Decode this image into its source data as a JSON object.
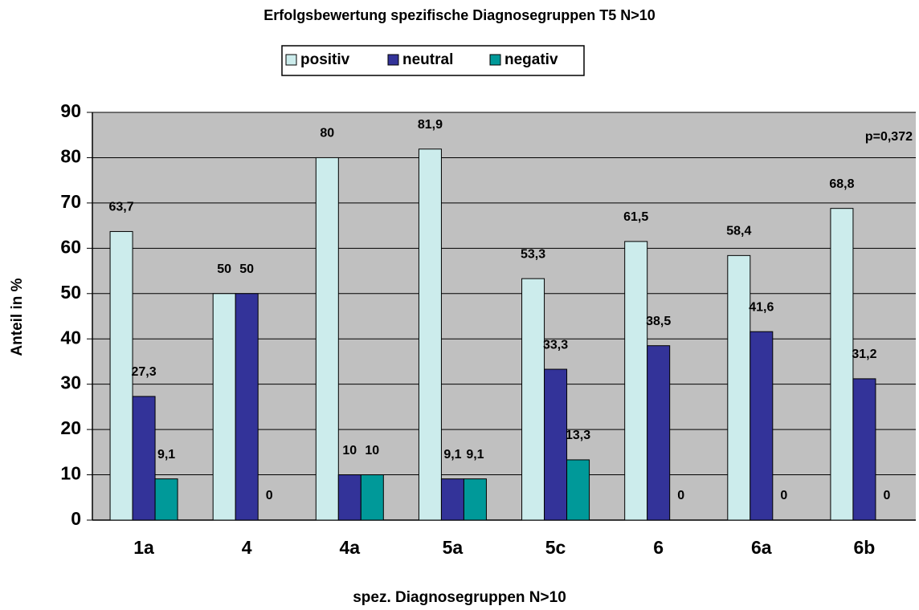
{
  "chart_data": {
    "type": "bar",
    "title": "Erfolgsbewertung spezifische Diagnosegruppen T5 N>10",
    "x_label": "spez. Diagnosegruppen N>10",
    "y_label": "Anteil in %",
    "annotation": "p=0,372",
    "categories": [
      "1a",
      "4",
      "4a",
      "5a",
      "5c",
      "6",
      "6a",
      "6b"
    ],
    "series": [
      {
        "name": "positiv",
        "color": "#ccecec",
        "values": [
          63.7,
          50,
          80,
          81.9,
          53.3,
          61.5,
          58.4,
          68.8
        ],
        "value_labels": [
          "63,7",
          "50",
          "80",
          "81,9",
          "53,3",
          "61,5",
          "58,4",
          "68,8"
        ]
      },
      {
        "name": "neutral",
        "color": "#333399",
        "values": [
          27.3,
          50,
          10,
          9.1,
          33.3,
          38.5,
          41.6,
          31.2
        ],
        "value_labels": [
          "27,3",
          "50",
          "10",
          "9,1",
          "33,3",
          "38,5",
          "41,6",
          "31,2"
        ]
      },
      {
        "name": "negativ",
        "color": "#009999",
        "values": [
          9.1,
          0,
          10,
          9.1,
          13.3,
          0,
          0,
          0
        ],
        "value_labels": [
          "9,1",
          "0",
          "10",
          "9,1",
          "13,3",
          "0",
          "0",
          "0"
        ]
      }
    ],
    "ylim": [
      0,
      90
    ],
    "yticks": [
      0,
      10,
      20,
      30,
      40,
      50,
      60,
      70,
      80,
      90
    ],
    "grid": true,
    "legend": "top",
    "plot_background": "#c0c0c0"
  }
}
